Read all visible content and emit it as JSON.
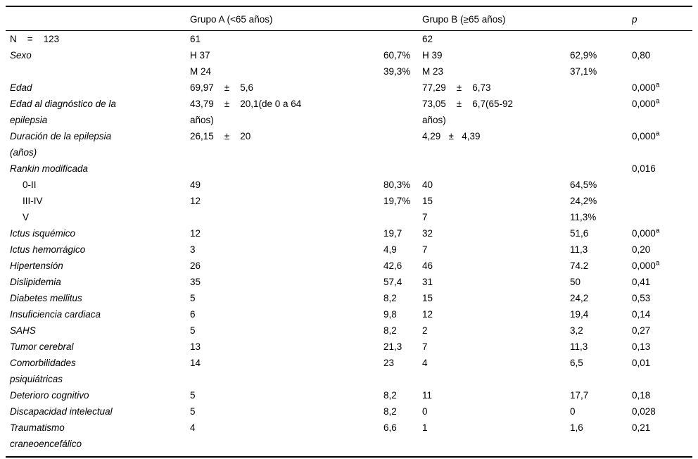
{
  "table": {
    "headers": {
      "group_a": "Grupo A (<65 años)",
      "group_b": "Grupo B (≥65 años)",
      "p": "p"
    },
    "rows": [
      {
        "label": "N    =    123",
        "italic": false,
        "a": "61",
        "b": "62"
      },
      {
        "label": "Sexo",
        "italic": true,
        "a": "H 37",
        "a_pct": "60,7%",
        "b": "H 39",
        "b_pct": "62,9%",
        "p": "0,80"
      },
      {
        "label": "",
        "a": "M 24",
        "a_pct": "39,3%",
        "b": "M 23",
        "b_pct": "37,1%"
      },
      {
        "label": "Edad",
        "italic": true,
        "a": "69,97    ±    5,6",
        "b": "77,29    ±    6,73",
        "p": "0,000",
        "p_sup": "a"
      },
      {
        "label": "Edad al diagnóstico de la\nepilepsia",
        "italic": true,
        "a": "43,79    ±    20,1(de 0 a 64\naños)",
        "b": "73,05    ±    6,7(65-92\naños)",
        "p": "0,000",
        "p_sup": "a"
      },
      {
        "label": "Duración de la epilepsia\n(años)",
        "italic": true,
        "a": "26,15    ±    20",
        "b": "4,29   ±   4,39",
        "p": "0,000",
        "p_sup": "a"
      },
      {
        "label": "Rankin modificada",
        "italic": true,
        "p": "0,016"
      },
      {
        "label": "0-II",
        "indent": true,
        "a": "49",
        "a_pct": "80,3%",
        "b": "40",
        "b_pct": "64,5%"
      },
      {
        "label": "III-IV",
        "indent": true,
        "a": "12",
        "a_pct": "19,7%",
        "b": "15",
        "b_pct": "24,2%"
      },
      {
        "label": "V",
        "indent": true,
        "b": "7",
        "b_pct": "11,3%"
      },
      {
        "label": "Ictus isquémico",
        "italic": true,
        "a": "12",
        "a_pct": "19,7",
        "b": "32",
        "b_pct": "51,6",
        "p": "0,000",
        "p_sup": "a"
      },
      {
        "label": "Ictus hemorrágico",
        "italic": true,
        "a": "3",
        "a_pct": "4,9",
        "b": "7",
        "b_pct": "11,3",
        "p": "0,20"
      },
      {
        "label": "Hipertensión",
        "italic": true,
        "a": "26",
        "a_pct": "42,6",
        "b": "46",
        "b_pct": "74.2",
        "p": "0,000",
        "p_sup": "a"
      },
      {
        "label": "Dislipidemia",
        "italic": true,
        "a": "35",
        "a_pct": "57,4",
        "b": "31",
        "b_pct": "50",
        "p": "0,41"
      },
      {
        "label": "Diabetes mellitus",
        "italic": true,
        "a": "5",
        "a_pct": "8,2",
        "b": "15",
        "b_pct": "24,2",
        "p": "0,53"
      },
      {
        "label": "Insuficiencia cardiaca",
        "italic": true,
        "a": "6",
        "a_pct": "9,8",
        "b": "12",
        "b_pct": "19,4",
        "p": "0,14"
      },
      {
        "label": "SAHS",
        "italic": true,
        "a": "5",
        "a_pct": "8,2",
        "b": "2",
        "b_pct": "3,2",
        "p": "0,27"
      },
      {
        "label": "Tumor cerebral",
        "italic": true,
        "a": "13",
        "a_pct": "21,3",
        "b": "7",
        "b_pct": "11,3",
        "p": "0,13"
      },
      {
        "label": "Comorbilidades\npsiquiátricas",
        "italic": true,
        "a": "14",
        "a_pct": "23",
        "b": "4",
        "b_pct": "6,5",
        "p": "0,01"
      },
      {
        "label": "Deterioro cognitivo",
        "italic": true,
        "a": "5",
        "a_pct": "8,2",
        "b": "11",
        "b_pct": "17,7",
        "p": "0,18"
      },
      {
        "label": "Discapacidad intelectual",
        "italic": true,
        "a": "5",
        "a_pct": "8,2",
        "b": "0",
        "b_pct": "0",
        "p": "0,028"
      },
      {
        "label": "Traumatismo\ncraneoencefálico",
        "italic": true,
        "a": "4",
        "a_pct": "6,6",
        "b": "1",
        "b_pct": "1,6",
        "p": "0,21"
      }
    ]
  }
}
